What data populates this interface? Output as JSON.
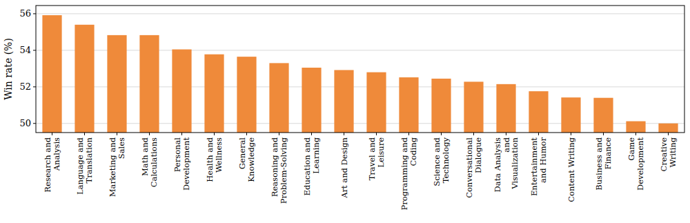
{
  "chart_data": {
    "type": "bar",
    "y_label": "Win rate (%)",
    "categories": [
      "Research and Analysis",
      "Language and Translation",
      "Marketing and Sales",
      "Math and Calculations",
      "Personal Development",
      "Health and Wellness",
      "General Knowledge",
      "Reasoning and Problem-Solving",
      "Education and Learning",
      "Art and Design",
      "Travel and Leisure",
      "Programming and Coding",
      "Science and Technology",
      "Conversational Dialogue",
      "Data Analysis and Visualization",
      "Entertainment and Humor",
      "Content Writing",
      "Business and Finance",
      "Game Development",
      "Creative Writing"
    ],
    "values": [
      55.92,
      55.4,
      54.83,
      54.83,
      54.05,
      53.78,
      53.65,
      53.3,
      53.05,
      52.92,
      52.8,
      52.52,
      52.45,
      52.28,
      52.15,
      51.76,
      51.42,
      51.4,
      50.12,
      50.0
    ],
    "color": "#ef8a3a",
    "ylim": [
      49.5,
      56.45
    ],
    "yticks": [
      50,
      52,
      54,
      56
    ],
    "grid": true
  }
}
